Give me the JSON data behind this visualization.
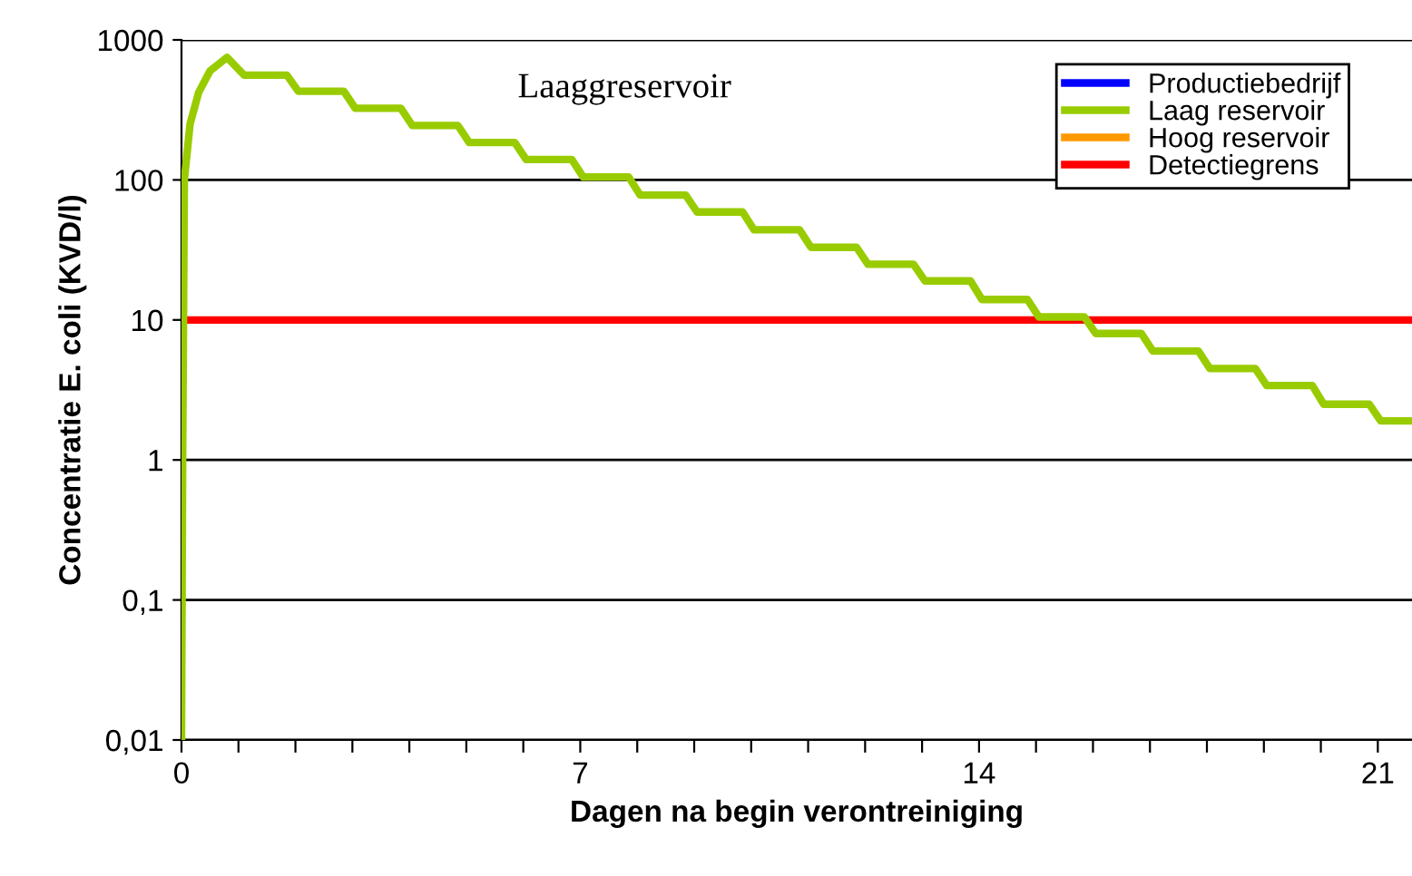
{
  "chart_data": {
    "type": "line",
    "xlabel": "Dagen na begin verontreiniging",
    "ylabel": "Concentratie E. coli (KVD/l)",
    "annotations": [
      "Laaggreservoir"
    ],
    "log": "y",
    "grid": "y",
    "legend": "top right",
    "marker": "none",
    "line_style": "solid",
    "xlim": [
      0,
      21.6
    ],
    "xticks": [
      0,
      {
        "value": 1,
        "label": null
      },
      {
        "value": 2,
        "label": null
      },
      {
        "value": 3,
        "label": null
      },
      {
        "value": 4,
        "label": null
      },
      {
        "value": 5,
        "label": null
      },
      {
        "value": 6,
        "label": null
      },
      7,
      {
        "value": 8,
        "label": null
      },
      {
        "value": 9,
        "label": null
      },
      {
        "value": 10,
        "label": null
      },
      {
        "value": 11,
        "label": null
      },
      {
        "value": 12,
        "label": null
      },
      {
        "value": 13,
        "label": null
      },
      14,
      {
        "value": 15,
        "label": null
      },
      {
        "value": 16,
        "label": null
      },
      {
        "value": 17,
        "label": null
      },
      {
        "value": 18,
        "label": null
      },
      {
        "value": 19,
        "label": null
      },
      {
        "value": 20,
        "label": null
      },
      21
    ],
    "ylim": [
      0.01,
      1000
    ],
    "yticks": [
      {
        "value": 0.01,
        "label": "0,01"
      },
      {
        "value": 0.1,
        "label": "0,1"
      },
      1,
      10,
      100,
      1000
    ],
    "series": [
      {
        "name": "Productiebedrijf",
        "color": "#0000ff"
      },
      {
        "name": "Laag reservoir",
        "color": "#99cc00",
        "x": [
          0,
          0.02,
          0.05,
          0.15,
          0.3,
          0.5,
          0.8,
          1.1,
          1.85,
          2.05,
          2.85,
          3.05,
          3.85,
          4.05,
          4.85,
          5.05,
          5.85,
          6.05,
          6.85,
          7.05,
          7.85,
          8.05,
          8.85,
          9.05,
          9.85,
          10.05,
          10.85,
          11.05,
          11.85,
          12.05,
          12.85,
          13.05,
          13.85,
          14.05,
          14.85,
          15.05,
          15.85,
          16.05,
          16.85,
          17.05,
          17.85,
          18.05,
          18.85,
          19.05,
          19.85,
          20.05,
          20.85,
          21.05,
          21.6
        ],
        "values": [
          0.01,
          1,
          100,
          250,
          420,
          600,
          750,
          560,
          560,
          430,
          430,
          325,
          325,
          245,
          245,
          185,
          185,
          140,
          140,
          105,
          105,
          78,
          78,
          59,
          59,
          44,
          44,
          33,
          33,
          25,
          25,
          19,
          19,
          14,
          14,
          10.5,
          10.5,
          8,
          8,
          6,
          6,
          4.5,
          4.5,
          3.4,
          3.4,
          2.5,
          2.5,
          1.9,
          1.9
        ]
      },
      {
        "name": "Hoog reservoir",
        "color": "#ff9900"
      }
    ],
    "ref_lines": [
      {
        "axis": "y",
        "value": 10,
        "label": "Detectiegrens",
        "color": "#ff0000"
      }
    ]
  }
}
